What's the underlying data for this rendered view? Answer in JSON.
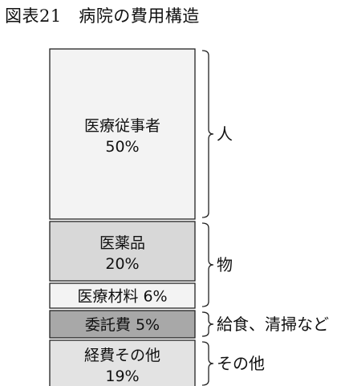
{
  "chart_data": {
    "type": "stacked-bar",
    "title": "図表21　病院の費用構造",
    "unit": "%",
    "segments": [
      {
        "label": "医療従事者",
        "value": 50,
        "value_text": "50%",
        "fill": "#f3f3f3",
        "inline": false
      },
      {
        "label": "医薬品",
        "value": 20,
        "value_text": "20%",
        "fill": "#d8d8d8",
        "inline": false
      },
      {
        "label": "医療材料",
        "value": 6,
        "value_text": "6%",
        "fill": "#f3f3f3",
        "inline": true
      },
      {
        "label": "委託費",
        "value": 5,
        "value_text": "5%",
        "fill": "#a8a8a8",
        "inline": true
      },
      {
        "label": "経費その他",
        "value": 19,
        "value_text": "19%",
        "fill": "#e3e3e3",
        "inline": false
      }
    ],
    "groups": [
      {
        "label": "人",
        "segments": [
          0
        ]
      },
      {
        "label": "物",
        "segments": [
          1,
          2
        ]
      },
      {
        "label": "給食、清掃など",
        "segments": [
          3
        ]
      },
      {
        "label": "その他",
        "segments": [
          4
        ]
      }
    ]
  }
}
